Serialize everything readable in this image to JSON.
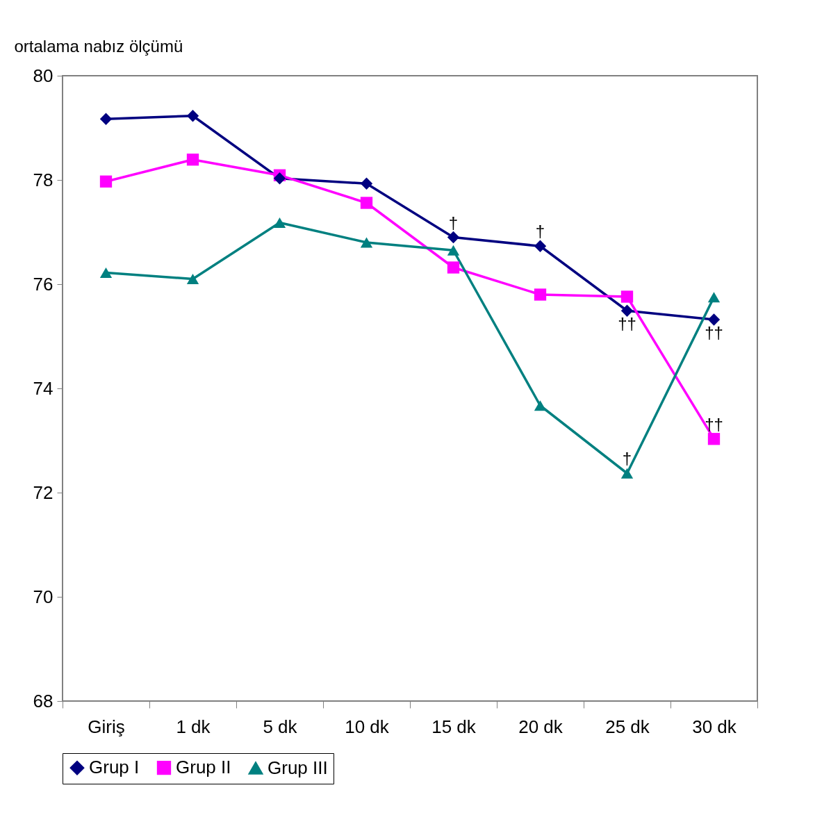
{
  "chart_data": {
    "type": "line",
    "ylabel": "ortalama nabız ölçümü",
    "categories": [
      "Giriş",
      "1 dk",
      "5 dk",
      "10 dk",
      "15 dk",
      "20 dk",
      "25 dk",
      "30 dk"
    ],
    "series": [
      {
        "name": "Grup I",
        "color": "#000080",
        "marker": "diamond",
        "values": [
          79.17,
          79.23,
          78.03,
          77.93,
          76.9,
          76.73,
          75.49,
          75.32
        ]
      },
      {
        "name": "Grup II",
        "color": "#ff00ff",
        "marker": "square",
        "values": [
          77.97,
          78.39,
          78.09,
          77.56,
          76.32,
          75.8,
          75.76,
          73.03
        ]
      },
      {
        "name": "Grup III",
        "color": "#008080",
        "marker": "triangle",
        "values": [
          76.22,
          76.1,
          77.18,
          76.8,
          76.65,
          73.67,
          72.37,
          75.75
        ]
      }
    ],
    "ylim": [
      68,
      80
    ],
    "yticks": [
      68,
      70,
      72,
      74,
      76,
      78,
      80
    ],
    "grid": false,
    "legend": "bottom",
    "line_style": "solid",
    "annotations": [
      {
        "text": "†",
        "x": "15 dk",
        "y": 76.9
      },
      {
        "text": "†",
        "x": "20 dk",
        "y": 76.73
      },
      {
        "text": "††",
        "x": "25 dk",
        "y": 75.49
      },
      {
        "text": "††",
        "x": "30 dk",
        "y": 75.32
      },
      {
        "text": "††",
        "x": "30 dk",
        "y": 73.03
      },
      {
        "text": "†",
        "x": "25 dk",
        "y": 72.37
      }
    ]
  }
}
